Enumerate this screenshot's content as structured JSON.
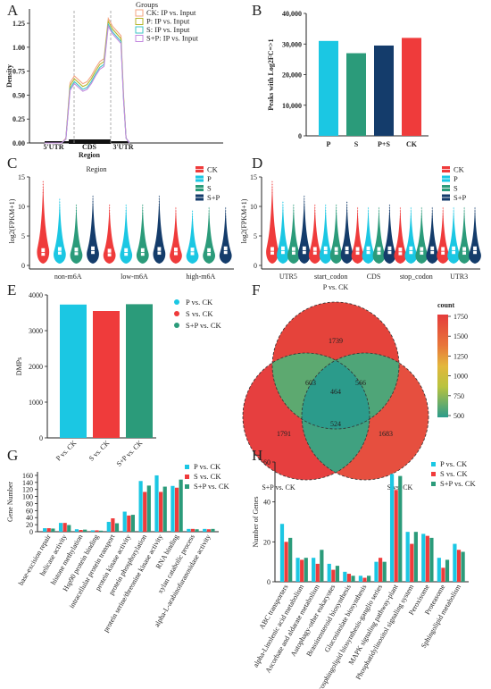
{
  "panel_labels": [
    "A",
    "B",
    "C",
    "D",
    "E",
    "F",
    "G",
    "H"
  ],
  "colors": {
    "cyan": "#1bc7e3",
    "red": "#ef3b3b",
    "teal": "#2b9b7a",
    "navy": "#143c6b",
    "grey": "#bdbdbd"
  },
  "chart_data": [
    {
      "panel": "A",
      "type": "line",
      "title": "",
      "legend_title": "Groups",
      "legend_position": "top-right",
      "xlabel": "Region",
      "ylabel": "Density",
      "region_labels": [
        "5'UTR",
        "CDS",
        "3'UTR"
      ],
      "y_ticks": [
        "0.00",
        "0.25",
        "0.50",
        "0.75",
        "1.00",
        "1.25"
      ],
      "ylim": [
        0,
        1.4
      ],
      "x": [
        0,
        0.1,
        0.2,
        0.25,
        0.3,
        0.35,
        0.4,
        0.45,
        0.5,
        0.55,
        0.6,
        0.65,
        0.7,
        0.75,
        0.8,
        0.85,
        0.9,
        0.93,
        0.96,
        1.0
      ],
      "series": [
        {
          "name": "CK: IP vs. Input",
          "color": "#f4a582",
          "values": [
            0,
            0,
            0,
            0.05,
            0.63,
            0.7,
            0.66,
            0.62,
            0.64,
            0.7,
            0.78,
            0.85,
            0.88,
            1.3,
            1.22,
            1.17,
            1.12,
            0.5,
            0.05,
            0
          ]
        },
        {
          "name": "P: IP vs. Input",
          "color": "#b5b52a",
          "values": [
            0,
            0,
            0,
            0.04,
            0.6,
            0.67,
            0.63,
            0.59,
            0.61,
            0.67,
            0.75,
            0.82,
            0.85,
            1.27,
            1.19,
            1.14,
            1.09,
            0.48,
            0.05,
            0
          ]
        },
        {
          "name": "S: IP vs. Input",
          "color": "#3fc6c6",
          "values": [
            0,
            0,
            0,
            0.04,
            0.57,
            0.64,
            0.6,
            0.56,
            0.58,
            0.64,
            0.72,
            0.79,
            0.82,
            1.24,
            1.16,
            1.11,
            1.06,
            0.46,
            0.05,
            0
          ]
        },
        {
          "name": "S+P: IP vs. Input",
          "color": "#c48be0",
          "values": [
            0,
            0,
            0,
            0.04,
            0.55,
            0.62,
            0.58,
            0.54,
            0.56,
            0.62,
            0.7,
            0.77,
            0.8,
            1.22,
            1.14,
            1.09,
            1.04,
            0.45,
            0.05,
            0
          ]
        }
      ]
    },
    {
      "panel": "B",
      "type": "bar",
      "title": "",
      "ylabel": "Peaks with Log2FC=>1",
      "y_ticks": [
        "0",
        "10,000",
        "20,000",
        "30,000",
        "40,000"
      ],
      "ylim": [
        0,
        40000
      ],
      "categories": [
        "P",
        "S",
        "P+S",
        "CK"
      ],
      "values": [
        31000,
        27000,
        29500,
        32000
      ],
      "colors": [
        "#1bc7e3",
        "#2b9b7a",
        "#143c6b",
        "#ef3b3b"
      ]
    },
    {
      "panel": "C",
      "type": "violin",
      "title": "Region",
      "ylabel": "log2(FPKM+1)",
      "y_ticks": [
        "0",
        "5",
        "10",
        "15"
      ],
      "ylim": [
        0,
        15
      ],
      "categories": [
        "non-m6A",
        "low-m6A",
        "high-m6A"
      ],
      "legend_position": "top-right",
      "series": [
        {
          "name": "CK",
          "color": "#ef3b3b",
          "median": [
            2.2,
            2.1,
            2.3
          ],
          "max": [
            14.5,
            10.5,
            10.0
          ]
        },
        {
          "name": "P",
          "color": "#1bc7e3",
          "median": [
            2.4,
            2.2,
            2.3
          ],
          "max": [
            11.5,
            10.5,
            9.5
          ]
        },
        {
          "name": "S",
          "color": "#2b9b7a",
          "median": [
            2.3,
            2.2,
            2.2
          ],
          "max": [
            10.5,
            10.5,
            10.0
          ]
        },
        {
          "name": "S+P",
          "color": "#143c6b",
          "median": [
            2.5,
            2.4,
            2.5
          ],
          "max": [
            12.0,
            12.0,
            10.0
          ]
        }
      ]
    },
    {
      "panel": "D",
      "type": "violin",
      "title": "",
      "ylabel": "log2(FPKM+1)",
      "y_ticks": [
        "0",
        "5",
        "10",
        "15"
      ],
      "ylim": [
        0,
        15
      ],
      "categories": [
        "UTR5",
        "start_codon",
        "CDS",
        "stop_codon",
        "UTR3"
      ],
      "legend_position": "top-right",
      "series": [
        {
          "name": "CK",
          "color": "#ef3b3b",
          "median": [
            2.4,
            2.4,
            2.4,
            2.3,
            2.4
          ],
          "max": [
            14.5,
            10.5,
            10.0,
            10.0,
            10.0
          ]
        },
        {
          "name": "P",
          "color": "#1bc7e3",
          "median": [
            2.5,
            2.5,
            2.5,
            2.5,
            2.5
          ],
          "max": [
            11.0,
            10.5,
            10.0,
            10.0,
            10.0
          ]
        },
        {
          "name": "S",
          "color": "#2b9b7a",
          "median": [
            2.4,
            2.4,
            2.4,
            2.4,
            2.4
          ],
          "max": [
            10.5,
            10.5,
            10.0,
            10.0,
            10.0
          ]
        },
        {
          "name": "S+P",
          "color": "#143c6b",
          "median": [
            2.5,
            2.5,
            2.5,
            2.5,
            2.5
          ],
          "max": [
            12.0,
            11.0,
            10.5,
            10.0,
            10.0
          ]
        }
      ]
    },
    {
      "panel": "E",
      "type": "bar",
      "title": "",
      "ylabel": "DMPs",
      "y_ticks": [
        "0",
        "1000",
        "2000",
        "3000",
        "4000"
      ],
      "ylim": [
        0,
        4000
      ],
      "categories": [
        "P vs. CK",
        "S vs. CK",
        "S+P vs. CK"
      ],
      "values": [
        3730,
        3550,
        3740
      ],
      "legend_position": "top-right",
      "series": [
        {
          "name": "P vs. CK",
          "color": "#1bc7e3"
        },
        {
          "name": "S vs. CK",
          "color": "#ef3b3b"
        },
        {
          "name": "S+P vs. CK",
          "color": "#2b9b7a"
        }
      ]
    },
    {
      "panel": "F",
      "type": "venn",
      "title": "",
      "legend_title": "count",
      "legend_ticks": [
        "1750",
        "1500",
        "1250",
        "1000",
        "750",
        "500"
      ],
      "color_range": [
        464,
        1791
      ],
      "sets": [
        "P vs. CK",
        "S+P vs. CK",
        "S vs. CK"
      ],
      "regions": [
        {
          "label": "P only",
          "value": 1739
        },
        {
          "label": "S+P only",
          "value": 1791
        },
        {
          "label": "S only",
          "value": 1683
        },
        {
          "label": "P & S+P",
          "value": 603
        },
        {
          "label": "P & S",
          "value": 566
        },
        {
          "label": "S+P & S",
          "value": 524
        },
        {
          "label": "all",
          "value": 464
        }
      ]
    },
    {
      "panel": "G",
      "type": "bar",
      "title": "",
      "ylabel": "Gene Number",
      "y_ticks": [
        "0",
        "20",
        "40",
        "60",
        "80",
        "100",
        "120",
        "140",
        "160"
      ],
      "ylim": [
        0,
        170
      ],
      "legend_position": "top-right",
      "categories": [
        "base-excision repair",
        "helicase activity",
        "histone methylation",
        "Hsp90 protein binding",
        "intracellular protein transport",
        "protein kinase activity",
        "protein phosphorylation",
        "protein serine/threonine kinase activity",
        "RNA binding",
        "xylan catabolic process",
        "alpha-L-arabinofuranosidase activity"
      ],
      "series": [
        {
          "name": "P vs. CK",
          "color": "#1bc7e3",
          "values": [
            10,
            25,
            7,
            4,
            28,
            57,
            144,
            160,
            130,
            8,
            8
          ]
        },
        {
          "name": "S vs. CK",
          "color": "#ef3b3b",
          "values": [
            10,
            25,
            5,
            4,
            38,
            46,
            113,
            113,
            125,
            8,
            7
          ]
        },
        {
          "name": "S+P vs. CK",
          "color": "#2b9b7a",
          "values": [
            9,
            19,
            6,
            3,
            24,
            48,
            131,
            128,
            148,
            7,
            8
          ]
        }
      ]
    },
    {
      "panel": "H",
      "type": "bar",
      "title": "",
      "ylabel": "Number of Genes",
      "y_ticks": [
        "0",
        "20",
        "40",
        "60"
      ],
      "ylim": [
        0,
        60
      ],
      "legend_position": "top-right",
      "categories": [
        "ABC transporters",
        "alpha-Linolenic acid metabolism",
        "Ascorbate and aldarate metabolism",
        "Autophagy-other eukaryotes",
        "Brassinosteroid biosynthesis",
        "Glucosinolate biosynthesis",
        "Glycosphingolipid biosynthesis-ganglio series",
        "MAPK signaling pathway-plant",
        "Phosphatidylinositol signaling system",
        "Peroxisome",
        "Proteasome",
        "Sphingolipid metabolism"
      ],
      "series": [
        {
          "name": "P vs. CK",
          "color": "#1bc7e3",
          "values": [
            29,
            12,
            12,
            9,
            5,
            3,
            10,
            54,
            25,
            24,
            12,
            19
          ]
        },
        {
          "name": "S vs. CK",
          "color": "#ef3b3b",
          "values": [
            20,
            11,
            9,
            6,
            4,
            2,
            12,
            46,
            19,
            23,
            7,
            16
          ]
        },
        {
          "name": "S+P vs. CK",
          "color": "#2b9b7a",
          "values": [
            22,
            12,
            16,
            8,
            3,
            3,
            10,
            53,
            25,
            22,
            11,
            15
          ]
        }
      ]
    }
  ]
}
